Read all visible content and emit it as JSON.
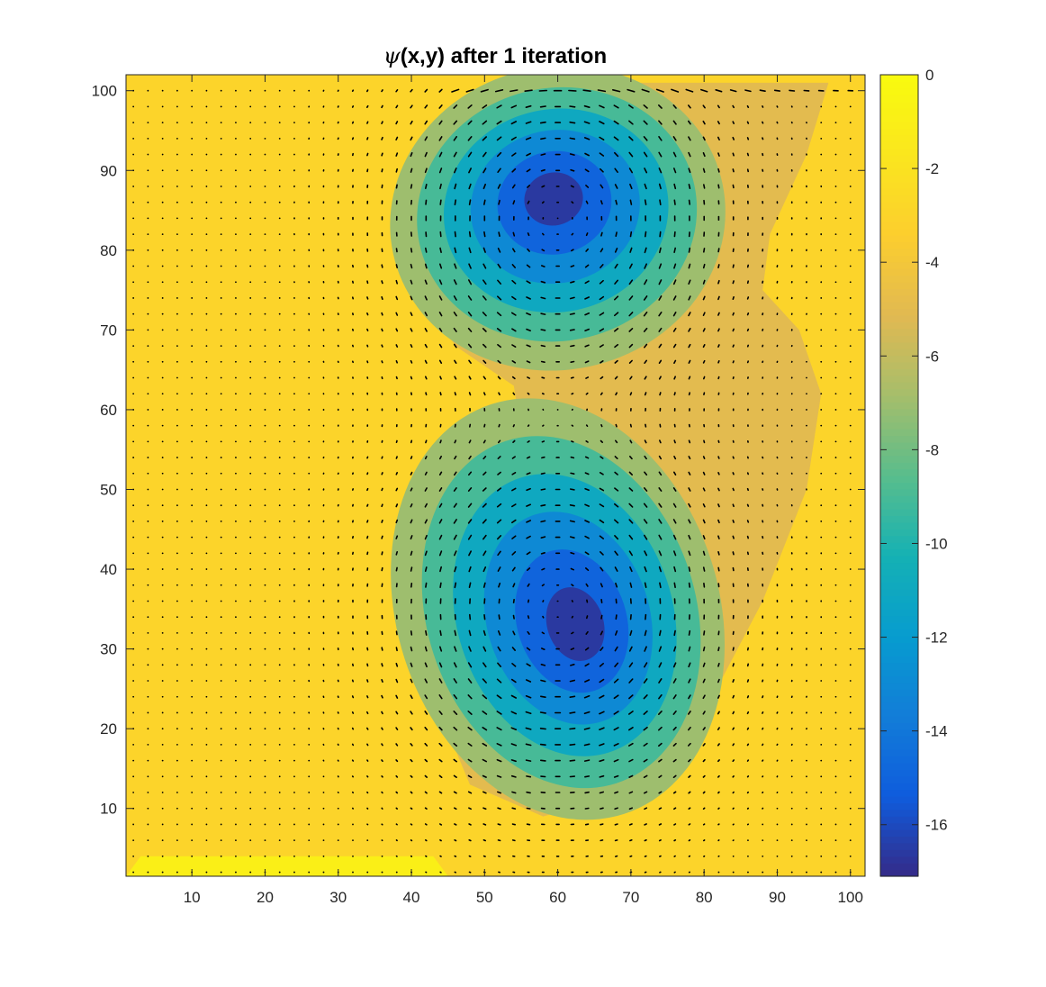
{
  "chart_data": {
    "type": "contourf+quiver",
    "title_symbol": "ψ",
    "title_rest": "(x,y) after 1 iteration",
    "xlim": [
      1,
      102
    ],
    "ylim": [
      1.5,
      102
    ],
    "x_ticks": [
      10,
      20,
      30,
      40,
      50,
      60,
      70,
      80,
      90,
      100
    ],
    "y_ticks": [
      10,
      20,
      30,
      40,
      50,
      60,
      70,
      80,
      90,
      100
    ],
    "colorbar": {
      "limits": [
        -17.1,
        0
      ],
      "ticks": [
        0,
        -2,
        -4,
        -6,
        -8,
        -10,
        -12,
        -14,
        -16
      ],
      "colormap": "parula",
      "levels": [
        0,
        -2,
        -4,
        -6,
        -8,
        -10,
        -12,
        -14,
        -16
      ]
    },
    "background_value": -2.5,
    "vortices": [
      {
        "cx": 60,
        "cy": 84,
        "min": -17,
        "orientation": "counter-clockwise"
      },
      {
        "cx": 60,
        "cy": 35,
        "min": -17,
        "orientation": "counter-clockwise"
      }
    ],
    "bottom_band": {
      "x_range": [
        3,
        43
      ],
      "y_range": [
        1.5,
        4
      ],
      "value": -0.5
    },
    "quiver_spacing": 2,
    "grid": false,
    "legend": "none"
  }
}
